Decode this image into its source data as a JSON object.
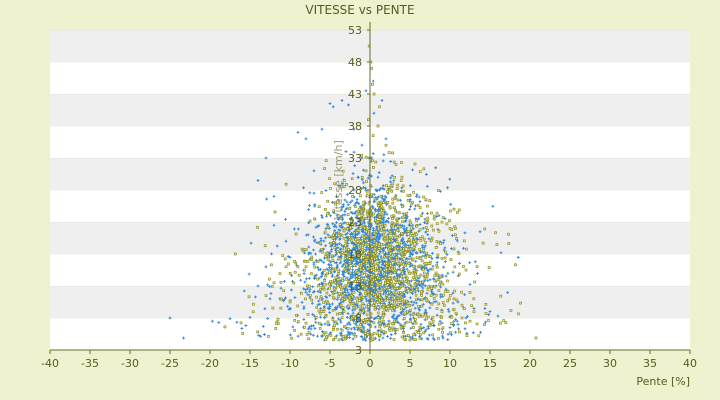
{
  "colors": {
    "background": "#eef2cf",
    "band_light": "#ffffff",
    "band_dark": "#efefef",
    "axis": "#6b6b2a",
    "text": "#5a5a1e",
    "series_a": "#2f86d6",
    "series_b": "#8f8f1e"
  },
  "chart_data": {
    "type": "scatter",
    "title": "VITESSE vs PENTE",
    "xlabel": "Pente [%]",
    "ylabel": "Vitesse [km/h]",
    "xlim": [
      -40,
      40
    ],
    "ylim": [
      3,
      53
    ],
    "x_ticks": [
      -40,
      -35,
      -30,
      -25,
      -20,
      -15,
      -10,
      -5,
      0,
      5,
      10,
      15,
      20,
      25,
      30,
      35,
      40
    ],
    "y_ticks": [
      3,
      8,
      13,
      18,
      23,
      28,
      33,
      38,
      43,
      48,
      53
    ],
    "grid": "alternating horizontal bands",
    "legend": "none",
    "series": [
      {
        "color": "#2f86d6",
        "marker": "+",
        "approx_n": 2000,
        "cluster": {
          "x_center": 0.5,
          "x_spread": 4,
          "y_center": 17,
          "y_spread": 6
        },
        "points": [
          [
            -25.0,
            8.0
          ],
          [
            -19.7,
            7.5
          ],
          [
            -18.9,
            7.3
          ],
          [
            -17.5,
            7.9
          ],
          [
            -15.0,
            8.1
          ],
          [
            -14.0,
            29.5
          ],
          [
            -13.0,
            33.0
          ],
          [
            -12.0,
            27.0
          ],
          [
            -10.5,
            20.0
          ],
          [
            -9.0,
            37.0
          ],
          [
            -8.0,
            36.0
          ],
          [
            -7.0,
            27.5
          ],
          [
            -6.0,
            37.5
          ],
          [
            -5.0,
            41.5
          ],
          [
            -4.6,
            41.0
          ],
          [
            -3.5,
            42.0
          ],
          [
            -2.7,
            41.3
          ],
          [
            -2.0,
            37.5
          ],
          [
            -1.0,
            35.0
          ],
          [
            -12.0,
            22.5
          ],
          [
            -13.0,
            16.0
          ],
          [
            -14.0,
            13.0
          ],
          [
            -12.5,
            11.0
          ],
          [
            -10.0,
            9.5
          ],
          [
            -8.0,
            12.0
          ],
          [
            -6.0,
            15.0
          ],
          [
            -4.0,
            19.0
          ],
          [
            -3.0,
            25.0
          ],
          [
            -2.0,
            28.0
          ],
          [
            -1.5,
            30.0
          ],
          [
            1.0,
            30.0
          ],
          [
            2.0,
            26.0
          ],
          [
            3.5,
            22.0
          ],
          [
            5.0,
            19.0
          ],
          [
            6.5,
            16.0
          ],
          [
            8.0,
            14.0
          ],
          [
            9.5,
            12.5
          ],
          [
            11.0,
            10.5
          ],
          [
            13.0,
            9.5
          ],
          [
            15.0,
            9.0
          ],
          [
            16.0,
            8.3
          ],
          [
            12.0,
            8.0
          ],
          [
            10.0,
            8.2
          ],
          [
            7.0,
            8.5
          ],
          [
            5.0,
            9.0
          ],
          [
            3.0,
            8.5
          ],
          [
            1.0,
            6.0
          ],
          [
            0.0,
            5.5
          ],
          [
            -1.0,
            5.8
          ],
          [
            -2.0,
            6.5
          ],
          [
            3.5,
            18.0
          ],
          [
            4.5,
            24.0
          ],
          [
            6.0,
            11.0
          ],
          [
            10.0,
            6.5
          ],
          [
            11.0,
            7.0
          ],
          [
            0.5,
            40.0
          ],
          [
            1.5,
            42.0
          ],
          [
            0.4,
            45.0
          ],
          [
            -0.5,
            43.5
          ],
          [
            2.0,
            36.0
          ],
          [
            -1.0,
            33.0
          ],
          [
            -7.0,
            31.0
          ],
          [
            -3.0,
            34.0
          ],
          [
            8.0,
            10.5
          ],
          [
            9.0,
            7.2
          ]
        ]
      },
      {
        "color": "#8f8f1e",
        "marker": "dot",
        "approx_n": 1200,
        "cluster": {
          "x_center": 1.5,
          "x_spread": 4.5,
          "y_center": 17,
          "y_spread": 7
        },
        "points": [
          [
            16.7,
            7.6
          ],
          [
            16.3,
            7.2
          ],
          [
            14.5,
            8.7
          ],
          [
            12.5,
            12.0
          ],
          [
            11.5,
            10.0
          ],
          [
            10.5,
            25.0
          ],
          [
            10.0,
            22.0
          ],
          [
            9.0,
            23.0
          ],
          [
            7.0,
            26.5
          ],
          [
            4.0,
            30.0
          ],
          [
            2.0,
            35.0
          ],
          [
            1.0,
            38.0
          ],
          [
            1.2,
            41.0
          ],
          [
            0.5,
            43.0
          ],
          [
            0.3,
            44.5
          ],
          [
            0.1,
            48.0
          ],
          [
            0.2,
            47.0
          ],
          [
            -0.1,
            50.5
          ],
          [
            -0.2,
            39.0
          ],
          [
            0.4,
            36.5
          ],
          [
            2.5,
            28.0
          ],
          [
            3.0,
            24.0
          ],
          [
            5.5,
            19.0
          ],
          [
            7.5,
            16.5
          ],
          [
            8.5,
            14.0
          ],
          [
            12.0,
            15.5
          ],
          [
            13.0,
            9.0
          ],
          [
            12.5,
            7.5
          ],
          [
            -2.0,
            12.0
          ],
          [
            -4.0,
            14.0
          ],
          [
            -6.0,
            9.0
          ],
          [
            -8.0,
            7.2
          ],
          [
            -10.0,
            10.5
          ],
          [
            -11.5,
            7.8
          ],
          [
            -13.0,
            11.5
          ],
          [
            -12.0,
            13.5
          ],
          [
            -9.0,
            16.0
          ],
          [
            -5.5,
            18.0
          ],
          [
            -3.0,
            20.0
          ],
          [
            -1.0,
            24.0
          ],
          [
            1.0,
            26.0
          ],
          [
            3.0,
            10.0
          ],
          [
            6.0,
            8.5
          ],
          [
            9.0,
            9.0
          ],
          [
            10.5,
            11.0
          ],
          [
            4.0,
            13.0
          ],
          [
            2.0,
            20.0
          ],
          [
            0.0,
            33.0
          ],
          [
            -0.5,
            31.0
          ],
          [
            11.5,
            8.0
          ]
        ]
      }
    ]
  }
}
